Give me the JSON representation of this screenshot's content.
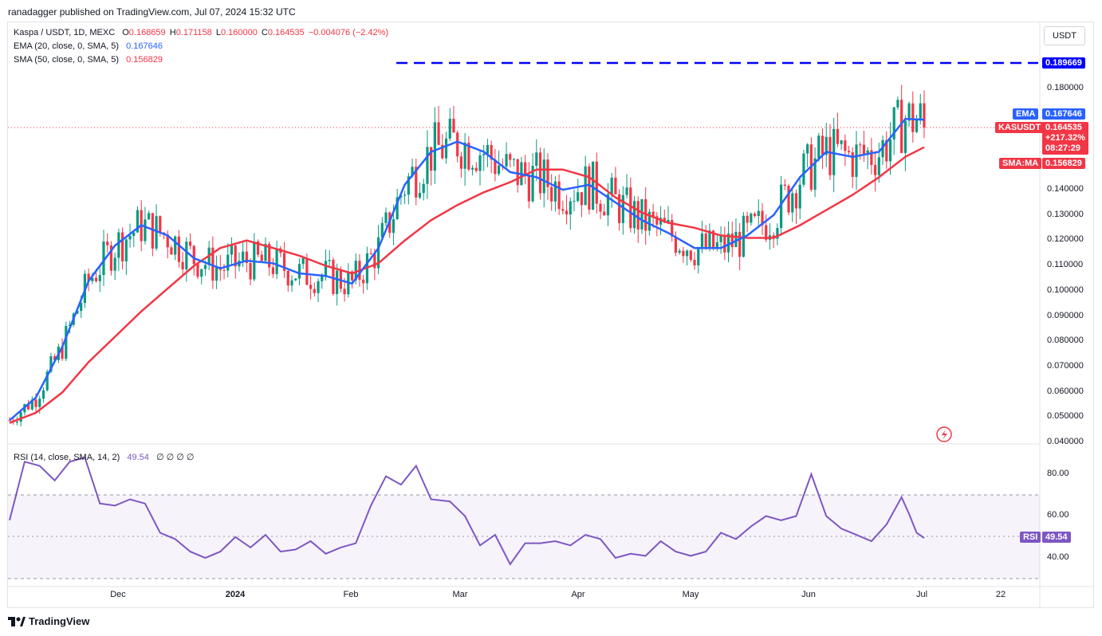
{
  "header": {
    "credit": "ranadagger published on TradingView.com, Jul 07, 2024 15:32 UTC"
  },
  "legend": {
    "symbol": "Kaspa / USDT, 1D, MEXC",
    "o_label": "O",
    "o": "0.168659",
    "h_label": "H",
    "h": "0.171158",
    "l_label": "L",
    "l": "0.160000",
    "c_label": "C",
    "c": "0.164535",
    "change": "−0.004076 (−2.42%)",
    "ema": {
      "label": "EMA (20, close, 0, SMA, 5)",
      "value": "0.167646"
    },
    "sma": {
      "label": "SMA (50, close, 0, SMA, 5)",
      "value": "0.156829"
    },
    "rsi": {
      "label": "RSI (14, close, SMA, 14, 2)",
      "value": "49.54",
      "extra": "∅ ∅ ∅ ∅"
    }
  },
  "currency": "USDT",
  "tags": {
    "resistance": "0.189669",
    "ema_name": "EMA",
    "ema_value": "0.167646",
    "symbol_name": "KASUSDT",
    "price": "0.164535",
    "pct": "+217.32%",
    "countdown": "08:27:29",
    "sma_name": "SMA:MA",
    "sma_value": "0.156829",
    "rsi_name": "RSI",
    "rsi_value": "49.54"
  },
  "price_ticks": [
    "0.180000",
    "0.140000",
    "0.130000",
    "0.120000",
    "0.110000",
    "0.100000",
    "0.090000",
    "0.080000",
    "0.070000",
    "0.060000",
    "0.050000",
    "0.040000"
  ],
  "rsi_ticks": [
    "80.00",
    "60.00",
    "40.00"
  ],
  "x_labels": [
    "Dec",
    "2024",
    "Feb",
    "Mar",
    "Apr",
    "May",
    "Jun",
    "Jul",
    "22"
  ],
  "brand": "TradingView",
  "colors": {
    "up": "#089981",
    "down": "#f23645",
    "ema": "#2962ff",
    "sma": "#f23645",
    "rsi": "#7e57c2",
    "resistance": "#0000ff"
  },
  "chart_data": [
    {
      "type": "candlestick",
      "title": "Kaspa / USDT, 1D, MEXC",
      "ylim": [
        0.04,
        0.19
      ],
      "resistance": 0.189669,
      "last_close": 0.164535,
      "series": [
        {
          "name": "EMA (20, close, 0, SMA, 5)",
          "points": [
            [
              "Nov 06",
              0.049
            ],
            [
              "Nov 13",
              0.058
            ],
            [
              "Nov 20",
              0.078
            ],
            [
              "Nov 27",
              0.104
            ],
            [
              "Dec 04",
              0.118
            ],
            [
              "Dec 11",
              0.126
            ],
            [
              "Dec 18",
              0.122
            ],
            [
              "Dec 25",
              0.113
            ],
            [
              "Jan 01",
              0.109
            ],
            [
              "Jan 08",
              0.112
            ],
            [
              "Jan 15",
              0.111
            ],
            [
              "Jan 22",
              0.107
            ],
            [
              "Jan 29",
              0.106
            ],
            [
              "Feb 05",
              0.103
            ],
            [
              "Feb 12",
              0.117
            ],
            [
              "Feb 19",
              0.142
            ],
            [
              "Feb 26",
              0.155
            ],
            [
              "Mar 04",
              0.159
            ],
            [
              "Mar 11",
              0.155
            ],
            [
              "Mar 18",
              0.147
            ],
            [
              "Mar 25",
              0.145
            ],
            [
              "Apr 01",
              0.14
            ],
            [
              "Apr 08",
              0.142
            ],
            [
              "Apr 15",
              0.135
            ],
            [
              "Apr 22",
              0.128
            ],
            [
              "Apr 29",
              0.123
            ],
            [
              "May 06",
              0.117
            ],
            [
              "May 13",
              0.117
            ],
            [
              "May 20",
              0.122
            ],
            [
              "May 27",
              0.13
            ],
            [
              "Jun 03",
              0.145
            ],
            [
              "Jun 10",
              0.155
            ],
            [
              "Jun 17",
              0.153
            ],
            [
              "Jun 24",
              0.155
            ],
            [
              "Jul 01",
              0.168
            ],
            [
              "Jul 06",
              0.167646
            ]
          ]
        },
        {
          "name": "SMA (50, close, 0, SMA, 5)",
          "points": [
            [
              "Nov 06",
              0.048
            ],
            [
              "Nov 13",
              0.052
            ],
            [
              "Nov 20",
              0.06
            ],
            [
              "Nov 27",
              0.072
            ],
            [
              "Dec 04",
              0.082
            ],
            [
              "Dec 11",
              0.092
            ],
            [
              "Dec 18",
              0.101
            ],
            [
              "Dec 25",
              0.11
            ],
            [
              "Jan 01",
              0.117
            ],
            [
              "Jan 08",
              0.12
            ],
            [
              "Jan 15",
              0.117
            ],
            [
              "Jan 22",
              0.114
            ],
            [
              "Jan 29",
              0.11
            ],
            [
              "Feb 05",
              0.107
            ],
            [
              "Feb 12",
              0.111
            ],
            [
              "Feb 19",
              0.12
            ],
            [
              "Feb 26",
              0.128
            ],
            [
              "Mar 04",
              0.134
            ],
            [
              "Mar 11",
              0.139
            ],
            [
              "Mar 18",
              0.143
            ],
            [
              "Mar 25",
              0.148
            ],
            [
              "Apr 01",
              0.148
            ],
            [
              "Apr 08",
              0.145
            ],
            [
              "Apr 15",
              0.137
            ],
            [
              "Apr 22",
              0.131
            ],
            [
              "Apr 29",
              0.127
            ],
            [
              "May 06",
              0.125
            ],
            [
              "May 13",
              0.122
            ],
            [
              "May 20",
              0.121
            ],
            [
              "May 27",
              0.121
            ],
            [
              "Jun 03",
              0.126
            ],
            [
              "Jun 10",
              0.132
            ],
            [
              "Jun 17",
              0.138
            ],
            [
              "Jun 24",
              0.145
            ],
            [
              "Jul 01",
              0.153
            ],
            [
              "Jul 06",
              0.156829
            ]
          ]
        }
      ]
    },
    {
      "type": "line",
      "title": "RSI (14, close, SMA, 14, 2)",
      "ylim": [
        30,
        90
      ],
      "bands": [
        30,
        70
      ],
      "series": [
        {
          "name": "RSI",
          "points": [
            [
              "Nov 06",
              58
            ],
            [
              "Nov 10",
              86
            ],
            [
              "Nov 14",
              84
            ],
            [
              "Nov 18",
              77
            ],
            [
              "Nov 22",
              86
            ],
            [
              "Nov 26",
              88
            ],
            [
              "Nov 30",
              66
            ],
            [
              "Dec 04",
              65
            ],
            [
              "Dec 08",
              68
            ],
            [
              "Dec 12",
              66
            ],
            [
              "Dec 16",
              52
            ],
            [
              "Dec 20",
              49
            ],
            [
              "Dec 24",
              43
            ],
            [
              "Dec 28",
              40
            ],
            [
              "Jan 01",
              43
            ],
            [
              "Jan 05",
              50
            ],
            [
              "Jan 09",
              45
            ],
            [
              "Jan 13",
              51
            ],
            [
              "Jan 17",
              43
            ],
            [
              "Jan 21",
              44
            ],
            [
              "Jan 25",
              48
            ],
            [
              "Jan 29",
              42
            ],
            [
              "Feb 02",
              45
            ],
            [
              "Feb 06",
              47
            ],
            [
              "Feb 10",
              65
            ],
            [
              "Feb 14",
              79
            ],
            [
              "Feb 18",
              75
            ],
            [
              "Feb 22",
              84
            ],
            [
              "Feb 26",
              68
            ],
            [
              "Mar 02",
              67
            ],
            [
              "Mar 06",
              60
            ],
            [
              "Mar 10",
              46
            ],
            [
              "Mar 14",
              51
            ],
            [
              "Mar 18",
              37
            ],
            [
              "Mar 22",
              47
            ],
            [
              "Mar 26",
              47
            ],
            [
              "Mar 30",
              48
            ],
            [
              "Apr 03",
              46
            ],
            [
              "Apr 07",
              51
            ],
            [
              "Apr 11",
              49
            ],
            [
              "Apr 15",
              40
            ],
            [
              "Apr 19",
              42
            ],
            [
              "Apr 23",
              41
            ],
            [
              "Apr 27",
              48
            ],
            [
              "May 01",
              43
            ],
            [
              "May 05",
              41
            ],
            [
              "May 09",
              43
            ],
            [
              "May 13",
              52
            ],
            [
              "May 17",
              49
            ],
            [
              "May 21",
              55
            ],
            [
              "May 25",
              60
            ],
            [
              "May 29",
              58
            ],
            [
              "Jun 02",
              60
            ],
            [
              "Jun 06",
              80
            ],
            [
              "Jun 10",
              60
            ],
            [
              "Jun 14",
              54
            ],
            [
              "Jun 18",
              51
            ],
            [
              "Jun 22",
              48
            ],
            [
              "Jun 26",
              56
            ],
            [
              "Jun 30",
              69
            ],
            [
              "Jul 02",
              61
            ],
            [
              "Jul 04",
              52
            ],
            [
              "Jul 06",
              49.54
            ]
          ]
        }
      ]
    }
  ]
}
